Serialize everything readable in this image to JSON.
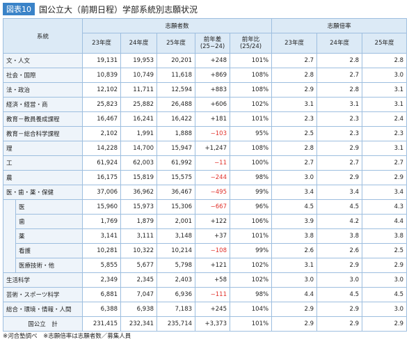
{
  "header": {
    "badge": "図表10",
    "title": "国公立大（前期日程）学部系統別志願状況"
  },
  "table": {
    "group_headers": [
      "系統",
      "志願者数",
      "志願倍率"
    ],
    "columns": [
      "23年度",
      "24年度",
      "25年度",
      "前年差\n(25−24)",
      "前年比\n(25/24)",
      "23年度",
      "24年度",
      "25年度"
    ],
    "rows": [
      {
        "label": "文・人文",
        "cells": [
          "19,131",
          "19,953",
          "20,201",
          "+248",
          "101%",
          "2.7",
          "2.8",
          "2.8"
        ]
      },
      {
        "label": "社会・国際",
        "cells": [
          "10,839",
          "10,749",
          "11,618",
          "+869",
          "108%",
          "2.8",
          "2.7",
          "3.0"
        ]
      },
      {
        "label": "法・政治",
        "cells": [
          "12,102",
          "11,711",
          "12,594",
          "+883",
          "108%",
          "2.9",
          "2.8",
          "3.1"
        ]
      },
      {
        "label": "経済・経営・商",
        "cells": [
          "25,823",
          "25,882",
          "26,488",
          "+606",
          "102%",
          "3.1",
          "3.1",
          "3.1"
        ]
      },
      {
        "label": "教育－教員養成課程",
        "cells": [
          "16,467",
          "16,241",
          "16,422",
          "+181",
          "101%",
          "2.3",
          "2.3",
          "2.4"
        ]
      },
      {
        "label": "教育－総合科学課程",
        "cells": [
          "2,102",
          "1,991",
          "1,888",
          "−103",
          "95%",
          "2.5",
          "2.3",
          "2.3"
        ]
      },
      {
        "label": "理",
        "cells": [
          "14,228",
          "14,700",
          "15,947",
          "+1,247",
          "108%",
          "2.8",
          "2.9",
          "3.1"
        ]
      },
      {
        "label": "工",
        "cells": [
          "61,924",
          "62,003",
          "61,992",
          "−11",
          "100%",
          "2.7",
          "2.7",
          "2.7"
        ]
      },
      {
        "label": "農",
        "cells": [
          "16,175",
          "15,819",
          "15,575",
          "−244",
          "98%",
          "3.0",
          "2.9",
          "2.9"
        ]
      },
      {
        "label": "医・歯・薬・保健",
        "cells": [
          "37,006",
          "36,962",
          "36,467",
          "−495",
          "99%",
          "3.4",
          "3.4",
          "3.4"
        ],
        "sub": [
          {
            "label": "医",
            "cells": [
              "15,960",
              "15,973",
              "15,306",
              "−667",
              "96%",
              "4.5",
              "4.5",
              "4.3"
            ]
          },
          {
            "label": "歯",
            "cells": [
              "1,769",
              "1,879",
              "2,001",
              "+122",
              "106%",
              "3.9",
              "4.2",
              "4.4"
            ]
          },
          {
            "label": "薬",
            "cells": [
              "3,141",
              "3,111",
              "3,148",
              "+37",
              "101%",
              "3.8",
              "3.8",
              "3.8"
            ]
          },
          {
            "label": "看護",
            "cells": [
              "10,281",
              "10,322",
              "10,214",
              "−108",
              "99%",
              "2.6",
              "2.6",
              "2.5"
            ]
          },
          {
            "label": "医療技術・他",
            "cells": [
              "5,855",
              "5,677",
              "5,798",
              "+121",
              "102%",
              "3.1",
              "2.9",
              "2.9"
            ]
          }
        ]
      },
      {
        "label": "生活科学",
        "cells": [
          "2,349",
          "2,345",
          "2,403",
          "+58",
          "102%",
          "3.0",
          "3.0",
          "3.0"
        ]
      },
      {
        "label": "芸術・スポーツ科学",
        "cells": [
          "6,881",
          "7,047",
          "6,936",
          "−111",
          "98%",
          "4.4",
          "4.5",
          "4.5"
        ]
      },
      {
        "label": "総合・環境・情報・人間",
        "cells": [
          "6,388",
          "6,938",
          "7,183",
          "+245",
          "104%",
          "2.9",
          "2.9",
          "3.0"
        ]
      }
    ],
    "total": {
      "label": "国公立　計",
      "cells": [
        "231,415",
        "232,341",
        "235,714",
        "+3,373",
        "101%",
        "2.9",
        "2.9",
        "2.9"
      ]
    }
  },
  "footnote": "※河合塾調べ　※志願倍率は志願者数／募集人員"
}
